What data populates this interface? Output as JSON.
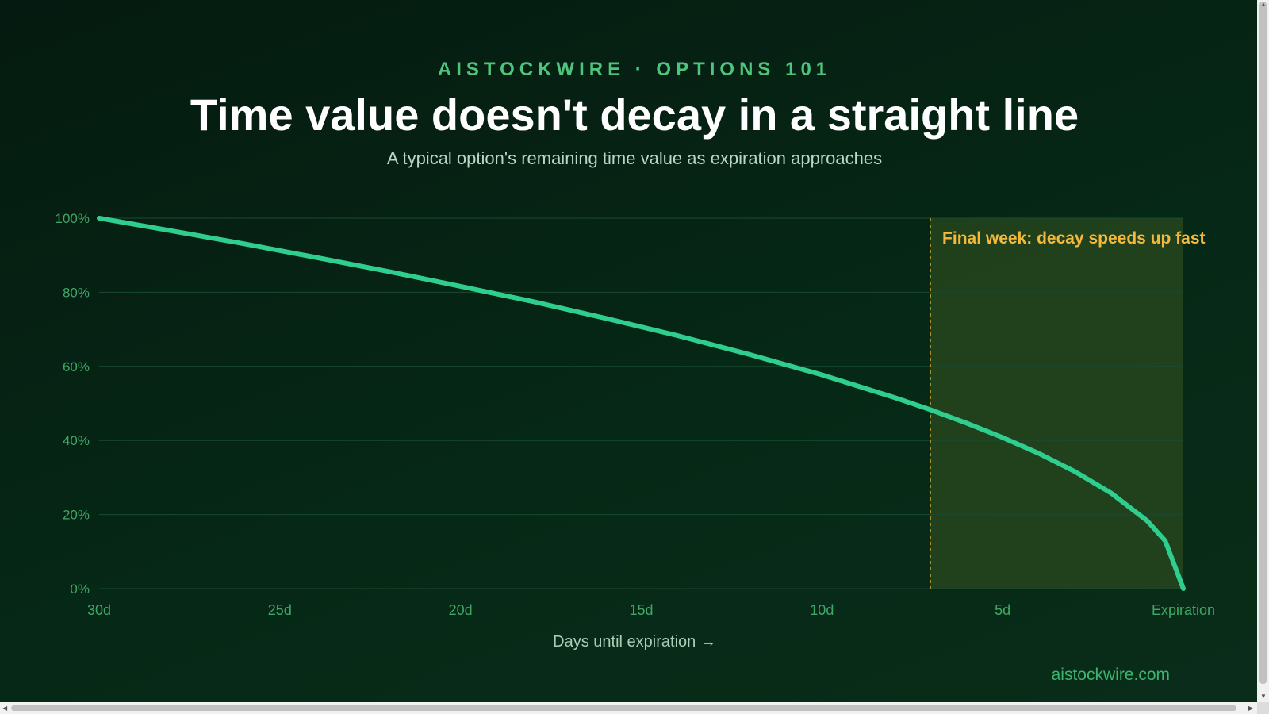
{
  "header": {
    "kicker": "AISTOCKWIRE · OPTIONS 101",
    "title": "Time value doesn't decay in a straight line",
    "subtitle": "A typical option's remaining time value as expiration approaches"
  },
  "footer": {
    "site": "aistockwire.com"
  },
  "colors": {
    "curve": "#2fce8f",
    "annotation": "#f3b93c",
    "axis_text": "#3fa866",
    "gridline": "#1a4a30",
    "highlight": "#2a4a1e"
  },
  "chart_data": {
    "type": "line",
    "title": "Time value doesn't decay in a straight line",
    "subtitle": "A typical option's remaining time value as expiration approaches",
    "xlabel": "Days until expiration →",
    "ylabel": "",
    "x_ticks": [
      "30d",
      "25d",
      "20d",
      "15d",
      "10d",
      "5d",
      "Expiration"
    ],
    "x_tick_values": [
      30,
      25,
      20,
      15,
      10,
      5,
      0
    ],
    "y_ticks": [
      "100%",
      "80%",
      "60%",
      "40%",
      "20%",
      "0%"
    ],
    "y_tick_values": [
      100,
      80,
      60,
      40,
      20,
      0
    ],
    "xlim": [
      30,
      0
    ],
    "ylim": [
      0,
      100
    ],
    "grid": true,
    "series": [
      {
        "x": [
          30,
          28,
          26,
          24,
          22,
          20,
          18,
          16,
          14,
          12,
          10,
          8,
          7,
          6,
          5,
          4,
          3,
          2,
          1,
          0.5,
          0
        ],
        "values": [
          100,
          96.6,
          93.1,
          89.4,
          85.6,
          81.6,
          77.5,
          73.0,
          68.3,
          63.2,
          57.7,
          51.6,
          48.3,
          44.7,
          40.8,
          36.5,
          31.6,
          25.8,
          18.3,
          12.9,
          0
        ]
      }
    ],
    "highlight_region": {
      "x_start": 7,
      "x_end": 0,
      "label": "Final week: decay speeds up fast"
    }
  }
}
